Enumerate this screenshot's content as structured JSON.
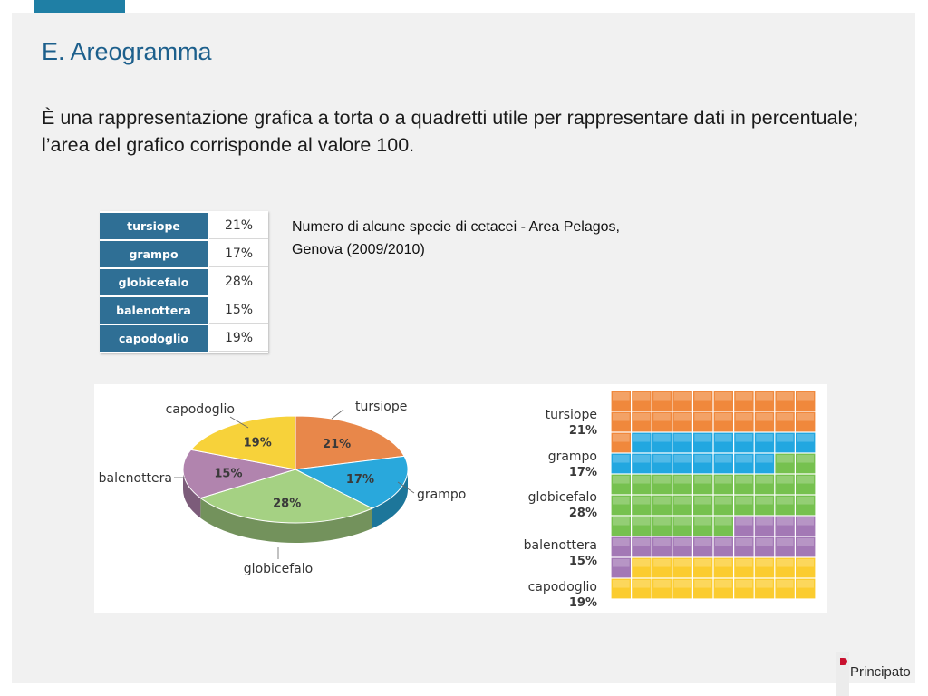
{
  "slide": {
    "title": "E. Areogramma",
    "body": "È una rappresentazione grafica a torta o a quadretti utile per rappresentare dati in percentuale; l’area del grafico corrisponde al valore 100.",
    "caption": "Numero di alcune specie di cetacei - Area Pelagos, Genova (2009/2010)"
  },
  "table": {
    "rows": [
      {
        "name": "tursiope",
        "pct": "21%"
      },
      {
        "name": "grampo",
        "pct": "17%"
      },
      {
        "name": "globicefalo",
        "pct": "28%"
      },
      {
        "name": "balenottera",
        "pct": "15%"
      },
      {
        "name": "capodoglio",
        "pct": "19%"
      }
    ]
  },
  "chart_data": [
    {
      "type": "pie",
      "categories": [
        "tursiope",
        "grampo",
        "globicefalo",
        "balenottera",
        "capodoglio"
      ],
      "values": [
        21,
        17,
        28,
        15,
        19
      ],
      "labels": [
        "21%",
        "17%",
        "28%",
        "15%",
        "19%"
      ],
      "colors": [
        "#e8874a",
        "#29a8dc",
        "#a5d183",
        "#b184ae",
        "#f7d23a"
      ],
      "style": "3d"
    },
    {
      "type": "heatmap",
      "subtype": "waffle",
      "grid": [
        10,
        10
      ],
      "categories": [
        "tursiope",
        "grampo",
        "globicefalo",
        "balenottera",
        "capodoglio"
      ],
      "values": [
        21,
        17,
        28,
        15,
        19
      ],
      "labels": [
        "21%",
        "17%",
        "28%",
        "15%",
        "19%"
      ],
      "colors": [
        "#f0883c",
        "#22a7e0",
        "#76c14f",
        "#a378b5",
        "#fbcc2f"
      ]
    }
  ],
  "logo": {
    "text": "Principato"
  }
}
